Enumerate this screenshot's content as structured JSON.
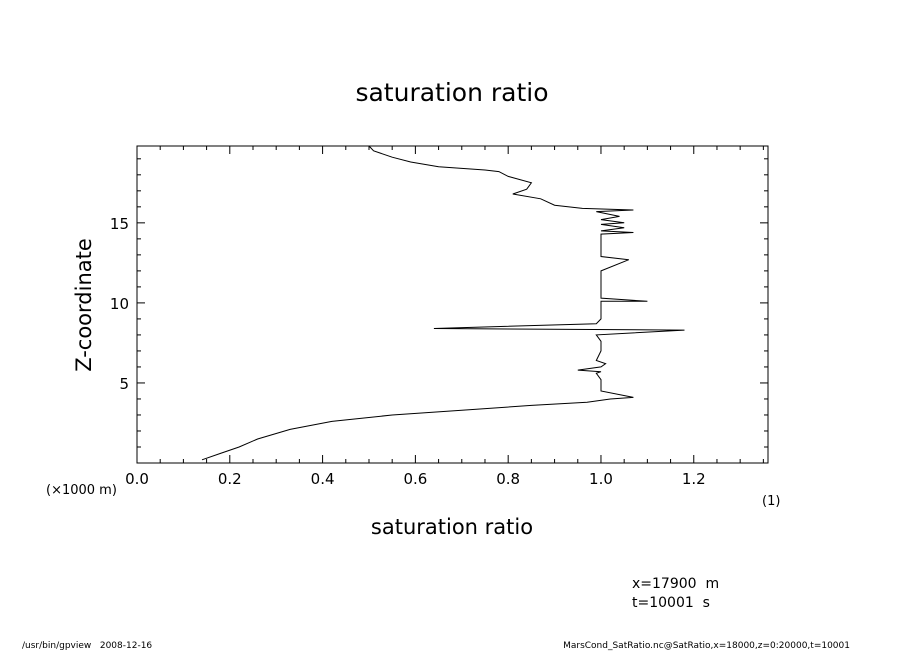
{
  "chart_data": {
    "type": "line",
    "title": "saturation ratio",
    "xlabel": "saturation ratio",
    "ylabel": "Z-coordinate",
    "x_units": "(×1000 m)",
    "scale_note": "(1)",
    "xlim": [
      0.0,
      1.36
    ],
    "ylim": [
      0,
      19.8
    ],
    "x_ticks": [
      "0.0",
      "0.2",
      "0.4",
      "0.6",
      "0.8",
      "1.0",
      "1.2"
    ],
    "y_ticks": [
      "5",
      "10",
      "15"
    ],
    "grid": false,
    "series": [
      {
        "x": [
          0.14,
          0.18,
          0.22,
          0.26,
          0.33,
          0.42,
          0.55,
          0.7,
          0.85,
          0.97,
          1.02,
          1.07,
          1.0,
          1.0,
          0.99,
          1.0,
          0.95,
          1.0,
          1.01,
          0.99,
          1.0,
          1.0,
          0.99,
          1.18,
          0.64,
          0.99,
          1.0,
          1.0,
          1.0,
          1.1,
          1.0,
          1.0,
          1.06,
          1.0,
          1.0,
          1.07,
          1.0,
          1.05,
          1.0,
          1.05,
          1.0,
          1.04,
          0.99,
          1.07,
          0.96,
          0.9,
          0.87,
          0.81,
          0.84,
          0.85,
          0.8,
          0.78,
          0.75,
          0.65,
          0.59,
          0.55,
          0.51,
          0.5
        ],
        "y": [
          0.2,
          0.6,
          1.0,
          1.5,
          2.1,
          2.6,
          3.0,
          3.3,
          3.6,
          3.8,
          4.0,
          4.1,
          4.5,
          5.2,
          5.6,
          5.7,
          5.8,
          6.0,
          6.2,
          6.4,
          7.0,
          7.6,
          8.0,
          8.3,
          8.4,
          8.7,
          9.0,
          9.6,
          10.1,
          10.1,
          10.3,
          12.0,
          12.7,
          12.9,
          14.3,
          14.4,
          14.5,
          14.7,
          14.9,
          15.0,
          15.2,
          15.4,
          15.7,
          15.8,
          15.9,
          16.1,
          16.5,
          16.8,
          17.1,
          17.5,
          17.9,
          18.2,
          18.3,
          18.5,
          18.8,
          19.1,
          19.5,
          19.8
        ]
      }
    ]
  },
  "annotations": {
    "x_position": "x=17900  m",
    "time": "t=10001  s"
  },
  "footer": {
    "left": "/usr/bin/gpview   2008-12-16",
    "right": "MarsCond_SatRatio.nc@SatRatio,x=18000,z=0:20000,t=10001"
  }
}
